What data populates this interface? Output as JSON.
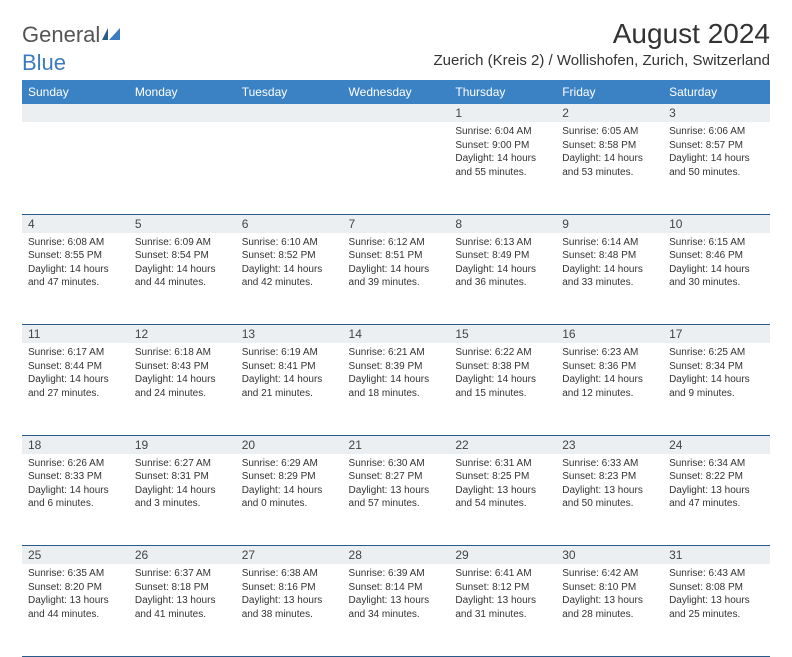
{
  "brand": {
    "name1": "General",
    "name2": "Blue"
  },
  "title": "August 2024",
  "location": "Zuerich (Kreis 2) / Wollishofen, Zurich, Switzerland",
  "colors": {
    "header_bg": "#3b82c4",
    "header_text": "#ffffff",
    "daynum_bg": "#eceff1",
    "border": "#2a5a8a",
    "logo_blue": "#3b7bbf"
  },
  "day_headers": [
    "Sunday",
    "Monday",
    "Tuesday",
    "Wednesday",
    "Thursday",
    "Friday",
    "Saturday"
  ],
  "weeks": [
    [
      null,
      null,
      null,
      null,
      {
        "n": "1",
        "sr": "6:04 AM",
        "ss": "9:00 PM",
        "dl": "14 hours and 55 minutes."
      },
      {
        "n": "2",
        "sr": "6:05 AM",
        "ss": "8:58 PM",
        "dl": "14 hours and 53 minutes."
      },
      {
        "n": "3",
        "sr": "6:06 AM",
        "ss": "8:57 PM",
        "dl": "14 hours and 50 minutes."
      }
    ],
    [
      {
        "n": "4",
        "sr": "6:08 AM",
        "ss": "8:55 PM",
        "dl": "14 hours and 47 minutes."
      },
      {
        "n": "5",
        "sr": "6:09 AM",
        "ss": "8:54 PM",
        "dl": "14 hours and 44 minutes."
      },
      {
        "n": "6",
        "sr": "6:10 AM",
        "ss": "8:52 PM",
        "dl": "14 hours and 42 minutes."
      },
      {
        "n": "7",
        "sr": "6:12 AM",
        "ss": "8:51 PM",
        "dl": "14 hours and 39 minutes."
      },
      {
        "n": "8",
        "sr": "6:13 AM",
        "ss": "8:49 PM",
        "dl": "14 hours and 36 minutes."
      },
      {
        "n": "9",
        "sr": "6:14 AM",
        "ss": "8:48 PM",
        "dl": "14 hours and 33 minutes."
      },
      {
        "n": "10",
        "sr": "6:15 AM",
        "ss": "8:46 PM",
        "dl": "14 hours and 30 minutes."
      }
    ],
    [
      {
        "n": "11",
        "sr": "6:17 AM",
        "ss": "8:44 PM",
        "dl": "14 hours and 27 minutes."
      },
      {
        "n": "12",
        "sr": "6:18 AM",
        "ss": "8:43 PM",
        "dl": "14 hours and 24 minutes."
      },
      {
        "n": "13",
        "sr": "6:19 AM",
        "ss": "8:41 PM",
        "dl": "14 hours and 21 minutes."
      },
      {
        "n": "14",
        "sr": "6:21 AM",
        "ss": "8:39 PM",
        "dl": "14 hours and 18 minutes."
      },
      {
        "n": "15",
        "sr": "6:22 AM",
        "ss": "8:38 PM",
        "dl": "14 hours and 15 minutes."
      },
      {
        "n": "16",
        "sr": "6:23 AM",
        "ss": "8:36 PM",
        "dl": "14 hours and 12 minutes."
      },
      {
        "n": "17",
        "sr": "6:25 AM",
        "ss": "8:34 PM",
        "dl": "14 hours and 9 minutes."
      }
    ],
    [
      {
        "n": "18",
        "sr": "6:26 AM",
        "ss": "8:33 PM",
        "dl": "14 hours and 6 minutes."
      },
      {
        "n": "19",
        "sr": "6:27 AM",
        "ss": "8:31 PM",
        "dl": "14 hours and 3 minutes."
      },
      {
        "n": "20",
        "sr": "6:29 AM",
        "ss": "8:29 PM",
        "dl": "14 hours and 0 minutes."
      },
      {
        "n": "21",
        "sr": "6:30 AM",
        "ss": "8:27 PM",
        "dl": "13 hours and 57 minutes."
      },
      {
        "n": "22",
        "sr": "6:31 AM",
        "ss": "8:25 PM",
        "dl": "13 hours and 54 minutes."
      },
      {
        "n": "23",
        "sr": "6:33 AM",
        "ss": "8:23 PM",
        "dl": "13 hours and 50 minutes."
      },
      {
        "n": "24",
        "sr": "6:34 AM",
        "ss": "8:22 PM",
        "dl": "13 hours and 47 minutes."
      }
    ],
    [
      {
        "n": "25",
        "sr": "6:35 AM",
        "ss": "8:20 PM",
        "dl": "13 hours and 44 minutes."
      },
      {
        "n": "26",
        "sr": "6:37 AM",
        "ss": "8:18 PM",
        "dl": "13 hours and 41 minutes."
      },
      {
        "n": "27",
        "sr": "6:38 AM",
        "ss": "8:16 PM",
        "dl": "13 hours and 38 minutes."
      },
      {
        "n": "28",
        "sr": "6:39 AM",
        "ss": "8:14 PM",
        "dl": "13 hours and 34 minutes."
      },
      {
        "n": "29",
        "sr": "6:41 AM",
        "ss": "8:12 PM",
        "dl": "13 hours and 31 minutes."
      },
      {
        "n": "30",
        "sr": "6:42 AM",
        "ss": "8:10 PM",
        "dl": "13 hours and 28 minutes."
      },
      {
        "n": "31",
        "sr": "6:43 AM",
        "ss": "8:08 PM",
        "dl": "13 hours and 25 minutes."
      }
    ]
  ],
  "labels": {
    "sunrise": "Sunrise:",
    "sunset": "Sunset:",
    "daylight": "Daylight:"
  }
}
